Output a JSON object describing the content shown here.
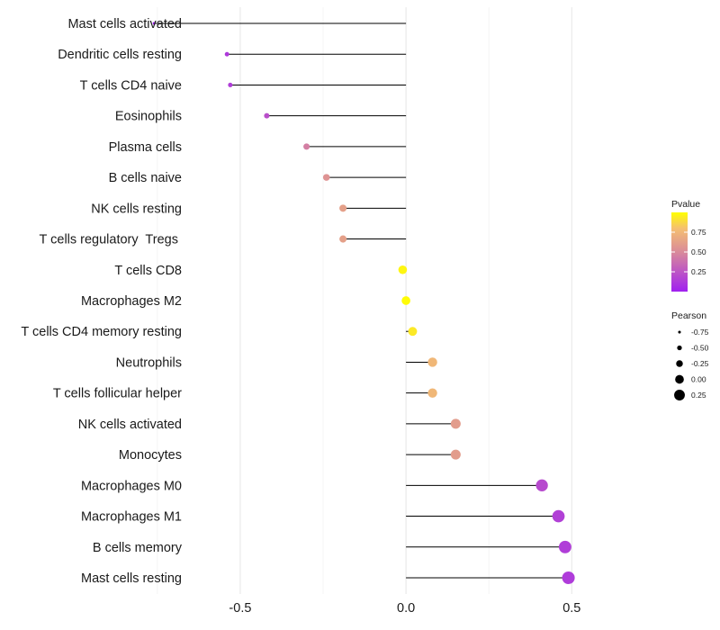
{
  "chart_data": {
    "type": "lollipop",
    "title": "",
    "xlabel": "",
    "ylabel": "",
    "xlim": [
      -0.66,
      0.73
    ],
    "x_ticks": [
      -0.5,
      0.0,
      0.5
    ],
    "x_tick_labels": [
      "-0.5",
      "0.0",
      "0.5"
    ],
    "grid": "vertical major and minor, light grey",
    "baseline": 0.0,
    "categories": [
      "Mast cells activated",
      "Dendritic cells resting",
      "T cells CD4 naive",
      "Eosinophils",
      "Plasma cells",
      "B cells naive",
      "NK cells resting",
      "T cells regulatory  Tregs ",
      "T cells CD8",
      "Macrophages M2",
      "T cells CD4 memory resting",
      "Neutrophils",
      "T cells follicular helper",
      "NK cells activated",
      "Monocytes",
      "Macrophages M0",
      "Macrophages M1",
      "B cells memory",
      "Mast cells resting"
    ],
    "pearson": [
      -0.76,
      -0.54,
      -0.53,
      -0.42,
      -0.3,
      -0.24,
      -0.19,
      -0.19,
      -0.01,
      0.0,
      0.02,
      0.08,
      0.08,
      0.15,
      0.15,
      0.41,
      0.46,
      0.48,
      0.49
    ],
    "pvalue": [
      0.0,
      0.12,
      0.14,
      0.22,
      0.45,
      0.55,
      0.62,
      0.62,
      0.97,
      0.99,
      0.93,
      0.75,
      0.75,
      0.6,
      0.6,
      0.2,
      0.15,
      0.14,
      0.13
    ],
    "legend": {
      "position": "right",
      "color": {
        "title": "Pvalue",
        "ticks": [
          0.25,
          0.5,
          0.75
        ],
        "tick_labels": [
          "0.25",
          "0.50",
          "0.75"
        ],
        "range": [
          0.0,
          1.0
        ],
        "low_color": "#a020f0",
        "mid_color": "#e8a07a",
        "high_color": "#ffff00"
      },
      "size": {
        "title": "Pearson",
        "values": [
          -0.75,
          -0.5,
          -0.25,
          0.0,
          0.25
        ],
        "labels": [
          "-0.75",
          "-0.50",
          "-0.25",
          "0.00",
          "0.25"
        ]
      }
    }
  }
}
